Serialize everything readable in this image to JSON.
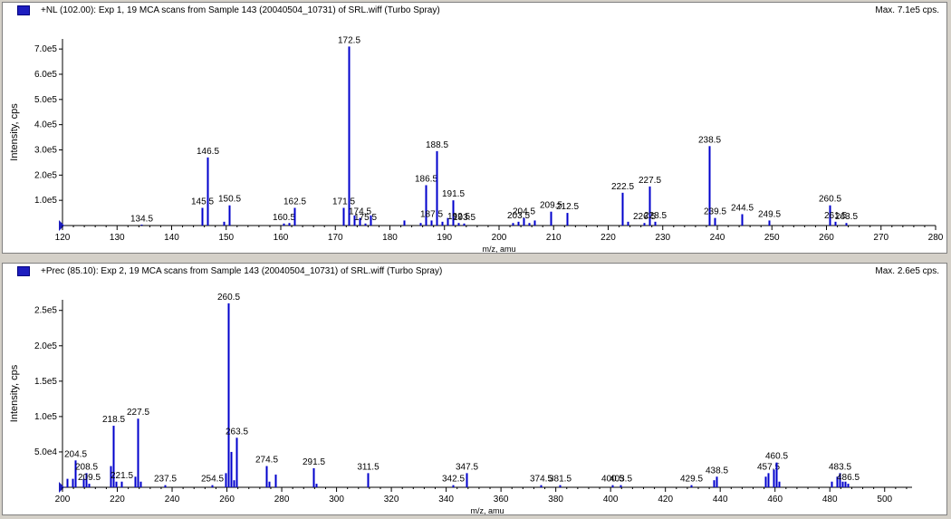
{
  "colors": {
    "peak": "#0000cc",
    "axis": "#000000",
    "title_square": "#1d1dbf"
  },
  "chart_data": [
    {
      "type": "bar",
      "title": "+NL (102.00): Exp 1, 19 MCA scans from Sample 143 (20040504_10731) of SRL.wiff (Turbo Spray)",
      "max_label": "Max. 7.1e5 cps.",
      "xlabel": "m/z, amu",
      "ylabel": "Intensity, cps",
      "xlim": [
        120,
        280
      ],
      "ylim": [
        0,
        740000.0
      ],
      "x_ticks": [
        120,
        130,
        140,
        150,
        160,
        170,
        180,
        190,
        200,
        210,
        220,
        230,
        240,
        250,
        260,
        270,
        280
      ],
      "y_ticks": [
        100000.0,
        200000.0,
        300000.0,
        400000.0,
        500000.0,
        600000.0,
        700000.0
      ],
      "y_tick_labels": [
        "1.0e5",
        "2.0e5",
        "3.0e5",
        "4.0e5",
        "5.0e5",
        "6.0e5",
        "7.0e5"
      ],
      "peaks": [
        {
          "x": 134.5,
          "y": 2000,
          "label": "134.5"
        },
        {
          "x": 145.5,
          "y": 70000,
          "label": "145.5"
        },
        {
          "x": 146.5,
          "y": 270000,
          "label": "146.5"
        },
        {
          "x": 149.5,
          "y": 15000
        },
        {
          "x": 150.5,
          "y": 80000,
          "label": "150.5"
        },
        {
          "x": 160.5,
          "y": 8000,
          "label": "160.5"
        },
        {
          "x": 161.5,
          "y": 10000
        },
        {
          "x": 162.5,
          "y": 70000,
          "label": "162.5"
        },
        {
          "x": 171.5,
          "y": 70000,
          "label": "171.5"
        },
        {
          "x": 172.5,
          "y": 710000,
          "label": "172.5"
        },
        {
          "x": 173.5,
          "y": 40000
        },
        {
          "x": 174.5,
          "y": 30000,
          "label": "174.5"
        },
        {
          "x": 175.5,
          "y": 8000,
          "label": "175.5"
        },
        {
          "x": 176.5,
          "y": 40000
        },
        {
          "x": 182.5,
          "y": 20000
        },
        {
          "x": 185.5,
          "y": 10000
        },
        {
          "x": 186.5,
          "y": 160000,
          "label": "186.5"
        },
        {
          "x": 187.5,
          "y": 20000,
          "label": "187.5"
        },
        {
          "x": 188.5,
          "y": 295000,
          "label": "188.5"
        },
        {
          "x": 189.5,
          "y": 15000
        },
        {
          "x": 190.5,
          "y": 30000
        },
        {
          "x": 191.5,
          "y": 100000,
          "label": "191.5"
        },
        {
          "x": 192.5,
          "y": 10000,
          "label": "192.5"
        },
        {
          "x": 193.5,
          "y": 8000,
          "label": "193.5"
        },
        {
          "x": 202.5,
          "y": 10000
        },
        {
          "x": 203.5,
          "y": 15000,
          "label": "203.5"
        },
        {
          "x": 204.5,
          "y": 30000,
          "label": "204.5"
        },
        {
          "x": 205.5,
          "y": 10000
        },
        {
          "x": 206.5,
          "y": 20000
        },
        {
          "x": 209.5,
          "y": 55000,
          "label": "209.5"
        },
        {
          "x": 212.5,
          "y": 50000,
          "label": "212.5"
        },
        {
          "x": 222.5,
          "y": 130000,
          "label": "222.5"
        },
        {
          "x": 223.5,
          "y": 15000
        },
        {
          "x": 226.5,
          "y": 10000,
          "label": "226.5"
        },
        {
          "x": 227.5,
          "y": 155000,
          "label": "227.5"
        },
        {
          "x": 228.5,
          "y": 15000,
          "label": "228.5"
        },
        {
          "x": 238.5,
          "y": 315000,
          "label": "238.5"
        },
        {
          "x": 239.5,
          "y": 30000,
          "label": "239.5"
        },
        {
          "x": 244.5,
          "y": 45000,
          "label": "244.5"
        },
        {
          "x": 249.5,
          "y": 20000,
          "label": "249.5"
        },
        {
          "x": 260.5,
          "y": 80000,
          "label": "260.5"
        },
        {
          "x": 261.5,
          "y": 15000,
          "label": "261.5"
        },
        {
          "x": 263.5,
          "y": 10000,
          "label": "263.5"
        }
      ]
    },
    {
      "type": "bar",
      "title": "+Prec (85.10): Exp 2, 19 MCA scans from Sample 143 (20040504_10731) of SRL.wiff (Turbo Spray)",
      "max_label": "Max. 2.6e5 cps.",
      "xlabel": "m/z, amu",
      "ylabel": "Intensity, cps",
      "xlim": [
        200,
        510
      ],
      "ylim": [
        0,
        265000.0
      ],
      "x_ticks": [
        200,
        220,
        240,
        260,
        280,
        300,
        320,
        340,
        360,
        380,
        400,
        420,
        440,
        460,
        480,
        500
      ],
      "y_ticks": [
        50000.0,
        100000.0,
        150000.0,
        200000.0,
        250000.0
      ],
      "y_tick_labels": [
        "5.0e4",
        "1.0e5",
        "1.5e5",
        "2.0e5",
        "2.5e5"
      ],
      "peaks": [
        {
          "x": 201.5,
          "y": 12000
        },
        {
          "x": 203.5,
          "y": 12000
        },
        {
          "x": 204.5,
          "y": 38000,
          "label": "204.5"
        },
        {
          "x": 207.5,
          "y": 12000
        },
        {
          "x": 208.5,
          "y": 20000,
          "label": "208.5"
        },
        {
          "x": 209.5,
          "y": 5000,
          "label": "209.5"
        },
        {
          "x": 217.5,
          "y": 30000
        },
        {
          "x": 218.5,
          "y": 87000,
          "label": "218.5"
        },
        {
          "x": 219.5,
          "y": 8000
        },
        {
          "x": 221.5,
          "y": 8000,
          "label": "221.5"
        },
        {
          "x": 226.5,
          "y": 15000
        },
        {
          "x": 227.5,
          "y": 97000,
          "label": "227.5"
        },
        {
          "x": 228.5,
          "y": 8000
        },
        {
          "x": 237.5,
          "y": 3000,
          "label": "237.5"
        },
        {
          "x": 254.5,
          "y": 3000,
          "label": "254.5"
        },
        {
          "x": 259.5,
          "y": 20000
        },
        {
          "x": 260.5,
          "y": 260000,
          "label": "260.5"
        },
        {
          "x": 261.5,
          "y": 50000
        },
        {
          "x": 262.5,
          "y": 10000
        },
        {
          "x": 263.5,
          "y": 70000,
          "label": "263.5"
        },
        {
          "x": 274.5,
          "y": 30000,
          "label": "274.5"
        },
        {
          "x": 275.5,
          "y": 8000
        },
        {
          "x": 277.5,
          "y": 18000
        },
        {
          "x": 291.5,
          "y": 27000,
          "label": "291.5"
        },
        {
          "x": 292.5,
          "y": 5000
        },
        {
          "x": 311.5,
          "y": 20000,
          "label": "311.5"
        },
        {
          "x": 342.5,
          "y": 3000,
          "label": "342.5"
        },
        {
          "x": 347.5,
          "y": 20000,
          "label": "347.5"
        },
        {
          "x": 374.5,
          "y": 3000,
          "label": "374.5"
        },
        {
          "x": 381.5,
          "y": 3000,
          "label": "381.5"
        },
        {
          "x": 400.5,
          "y": 3000,
          "label": "400.5"
        },
        {
          "x": 403.5,
          "y": 3000,
          "label": "403.5"
        },
        {
          "x": 429.5,
          "y": 3000,
          "label": "429.5"
        },
        {
          "x": 437.5,
          "y": 10000
        },
        {
          "x": 438.5,
          "y": 15000,
          "label": "438.5"
        },
        {
          "x": 456.5,
          "y": 15000
        },
        {
          "x": 457.5,
          "y": 20000,
          "label": "457.5"
        },
        {
          "x": 459.5,
          "y": 25000
        },
        {
          "x": 460.5,
          "y": 35000,
          "label": "460.5"
        },
        {
          "x": 461.5,
          "y": 8000
        },
        {
          "x": 480.5,
          "y": 8000
        },
        {
          "x": 482.5,
          "y": 15000
        },
        {
          "x": 483.5,
          "y": 20000,
          "label": "483.5"
        },
        {
          "x": 484.5,
          "y": 8000
        },
        {
          "x": 485.5,
          "y": 8000
        },
        {
          "x": 486.5,
          "y": 5000,
          "label": "486.5"
        }
      ]
    }
  ]
}
